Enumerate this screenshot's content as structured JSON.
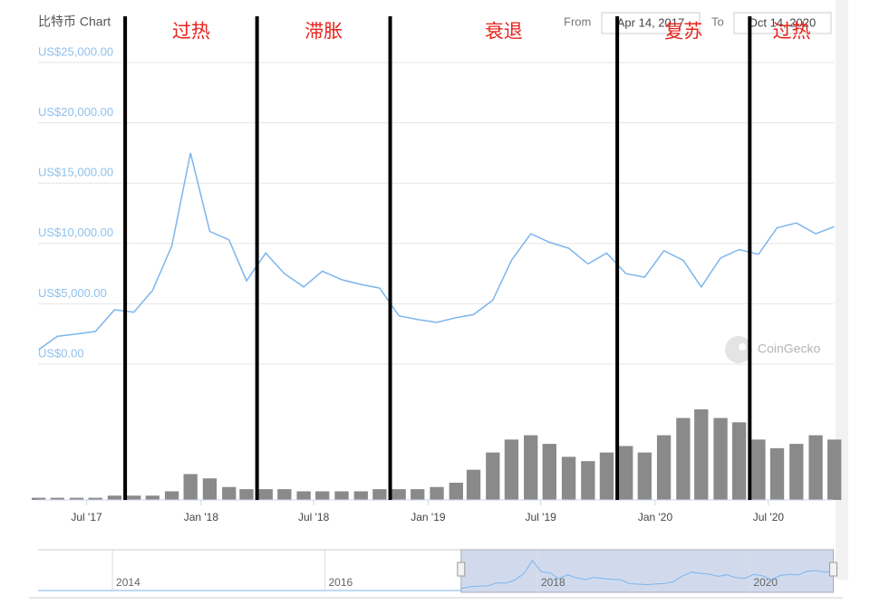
{
  "chart_data": {
    "type": "line",
    "title": "比特币 Chart",
    "range_selector": {
      "from_label": "From",
      "from": "Apr 14, 2017",
      "to_label": "To",
      "to": "Oct 14, 2020"
    },
    "x": [
      "2017-04",
      "2017-05",
      "2017-06",
      "2017-07",
      "2017-08",
      "2017-09",
      "2017-10",
      "2017-11",
      "2017-12",
      "2018-01",
      "2018-02",
      "2018-03",
      "2018-04",
      "2018-05",
      "2018-06",
      "2018-07",
      "2018-08",
      "2018-09",
      "2018-10",
      "2018-11",
      "2018-12",
      "2019-01",
      "2019-02",
      "2019-03",
      "2019-04",
      "2019-05",
      "2019-06",
      "2019-07",
      "2019-08",
      "2019-09",
      "2019-10",
      "2019-11",
      "2019-12",
      "2020-01",
      "2020-02",
      "2020-03",
      "2020-04",
      "2020-05",
      "2020-06",
      "2020-07",
      "2020-08",
      "2020-09",
      "2020-10"
    ],
    "values": [
      1200,
      2300,
      2500,
      2700,
      4500,
      4300,
      6100,
      9800,
      17500,
      11000,
      10300,
      6900,
      9200,
      7500,
      6400,
      7700,
      7000,
      6600,
      6300,
      4000,
      3700,
      3450,
      3850,
      4100,
      5300,
      8600,
      10800,
      10100,
      9600,
      8300,
      9200,
      7500,
      7200,
      9400,
      8600,
      6400,
      8800,
      9500,
      9100,
      11300,
      11700,
      10800,
      11400
    ],
    "color": "#7cb5ec",
    "volume": [
      1,
      1,
      1,
      1,
      2,
      2,
      2,
      4,
      12,
      10,
      6,
      5,
      5,
      5,
      4,
      4,
      4,
      4,
      5,
      5,
      5,
      6,
      8,
      14,
      22,
      28,
      30,
      26,
      20,
      18,
      22,
      25,
      22,
      30,
      38,
      42,
      38,
      36,
      28,
      24,
      26,
      30,
      28
    ],
    "volume_color": "#8a8a8a",
    "xlim": [
      "2017-04-14",
      "2020-10-14"
    ],
    "xticks": [
      {
        "value": "2017-07",
        "label": "Jul '17"
      },
      {
        "value": "2018-01",
        "label": "Jan '18"
      },
      {
        "value": "2018-07",
        "label": "Jul '18"
      },
      {
        "value": "2019-01",
        "label": "Jan '19"
      },
      {
        "value": "2019-07",
        "label": "Jul '19"
      },
      {
        "value": "2020-01",
        "label": "Jan '20"
      },
      {
        "value": "2020-07",
        "label": "Jul '20"
      }
    ],
    "ylim": [
      0,
      25000
    ],
    "yticks": [
      {
        "value": 0,
        "label": "US$0.00"
      },
      {
        "value": 5000,
        "label": "US$5,000.00"
      },
      {
        "value": 10000,
        "label": "US$10,000.00"
      },
      {
        "value": 15000,
        "label": "US$15,000.00"
      },
      {
        "value": 20000,
        "label": "US$20,000.00"
      },
      {
        "value": 25000,
        "label": "US$25,000.00"
      }
    ],
    "grid": true,
    "phases": [
      {
        "label": "过热",
        "start": "2017-09"
      },
      {
        "label": "滞胀",
        "start": "2018-04"
      },
      {
        "label": "衰退",
        "start": "2018-11"
      },
      {
        "label": "复苏",
        "start": "2019-11"
      },
      {
        "label": "过热",
        "start": "2020-06"
      }
    ],
    "phase_color": "#e8231e",
    "watermark": "CoinGecko",
    "navigator": {
      "xlim": [
        2013.3,
        2020.79
      ],
      "xticks": [
        2014,
        2016,
        2018,
        2020
      ]
    }
  }
}
